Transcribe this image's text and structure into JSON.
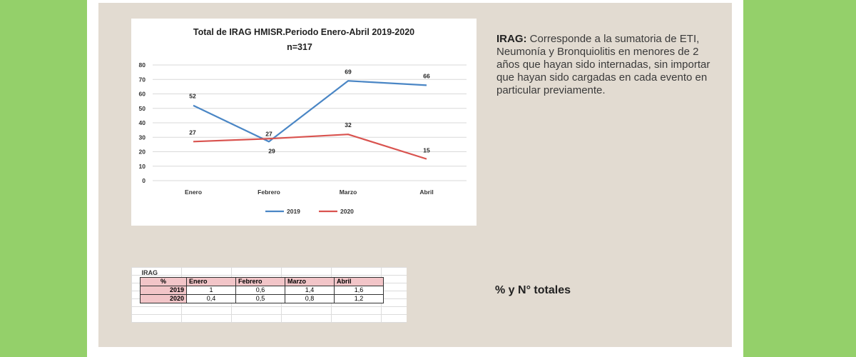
{
  "chart_data": {
    "type": "line",
    "title": "Total de IRAG HMISR.Periodo Enero-Abril 2019-2020",
    "subtitle": "n=317",
    "categories": [
      "Enero",
      "Febrero",
      "Marzo",
      "Abril"
    ],
    "series": [
      {
        "name": "2019",
        "values": [
          52,
          27,
          69,
          66
        ],
        "labels": [
          "52",
          "27",
          "69",
          "66"
        ],
        "color": "#4a86c5"
      },
      {
        "name": "2020",
        "values": [
          27,
          29,
          32,
          15
        ],
        "labels": [
          "27",
          "29",
          "32",
          "15"
        ],
        "color": "#d9534f"
      }
    ],
    "yticks": [
      "80",
      "70",
      "60",
      "50",
      "40",
      "30",
      "20",
      "10",
      "0"
    ],
    "ylim": [
      0,
      80
    ],
    "grid": true,
    "legend_position": "bottom"
  },
  "description": {
    "term": "IRAG:",
    "text": " Corresponde a la sumatoria de ETI, Neumonía y Bronquiolitis en menores de 2 años que hayan sido internadas, sin importar que hayan sido cargadas en cada evento en particular previamente."
  },
  "totals_label": "% y N° totales",
  "table": {
    "caption": "IRAG",
    "headers": [
      "%",
      "Enero",
      "Febrero",
      "Marzo",
      "Abril"
    ],
    "rows": [
      {
        "year": "2019",
        "values": [
          "1",
          "0,6",
          "1,4",
          "1,6"
        ]
      },
      {
        "year": "2020",
        "values": [
          "0,4",
          "0,5",
          "0,8",
          "1,2"
        ]
      }
    ]
  }
}
